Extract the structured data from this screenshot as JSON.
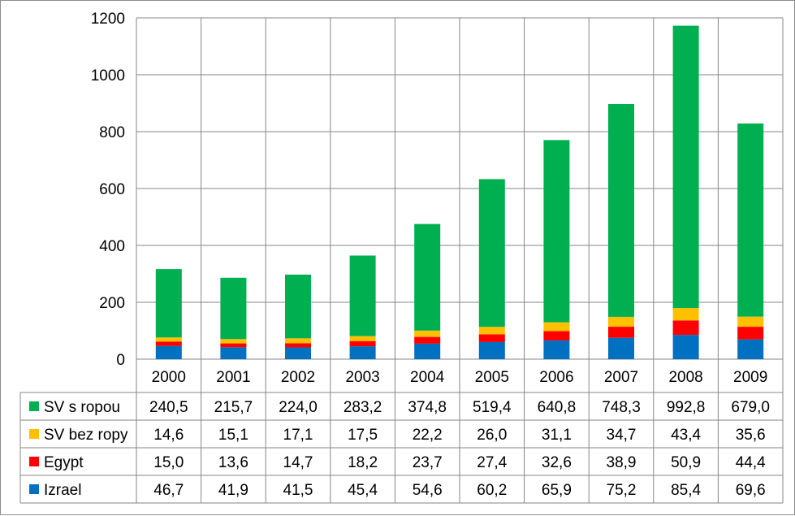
{
  "chart_data": {
    "type": "bar",
    "stacked": true,
    "title": "",
    "xlabel": "",
    "ylabel": "",
    "ylim": [
      0,
      1200
    ],
    "yticks": [
      0,
      200,
      400,
      600,
      800,
      1000,
      1200
    ],
    "grid": true,
    "legend": "data-table-rows",
    "categories": [
      "2000",
      "2001",
      "2002",
      "2003",
      "2004",
      "2005",
      "2006",
      "2007",
      "2008",
      "2009"
    ],
    "series": [
      {
        "name": "Izrael",
        "color": "#0070C0",
        "values": [
          46.7,
          41.9,
          41.5,
          45.4,
          54.6,
          60.2,
          65.9,
          75.2,
          85.4,
          69.6
        ],
        "labels": [
          "46,7",
          "41,9",
          "41,5",
          "45,4",
          "54,6",
          "60,2",
          "65,9",
          "75,2",
          "85,4",
          "69,6"
        ]
      },
      {
        "name": "Egypt",
        "color": "#FF0000",
        "values": [
          15.0,
          13.6,
          14.7,
          18.2,
          23.7,
          27.4,
          32.6,
          38.9,
          50.9,
          44.4
        ],
        "labels": [
          "15,0",
          "13,6",
          "14,7",
          "18,2",
          "23,7",
          "27,4",
          "32,6",
          "38,9",
          "50,9",
          "44,4"
        ]
      },
      {
        "name": "SV bez ropy",
        "color": "#FFC000",
        "values": [
          14.6,
          15.1,
          17.1,
          17.5,
          22.2,
          26.0,
          31.1,
          34.7,
          43.4,
          35.6
        ],
        "labels": [
          "14,6",
          "15,1",
          "17,1",
          "17,5",
          "22,2",
          "26,0",
          "31,1",
          "34,7",
          "43,4",
          "35,6"
        ]
      },
      {
        "name": "SV s ropou",
        "color": "#00B050",
        "values": [
          240.5,
          215.7,
          224.0,
          283.2,
          374.8,
          519.4,
          640.8,
          748.3,
          992.8,
          679.0
        ],
        "labels": [
          "240,5",
          "215,7",
          "224,0",
          "283,2",
          "374,8",
          "519,4",
          "640,8",
          "748,3",
          "992,8",
          "679,0"
        ]
      }
    ],
    "table_row_order": [
      "SV s ropou",
      "SV bez ropy",
      "Egypt",
      "Izrael"
    ]
  }
}
